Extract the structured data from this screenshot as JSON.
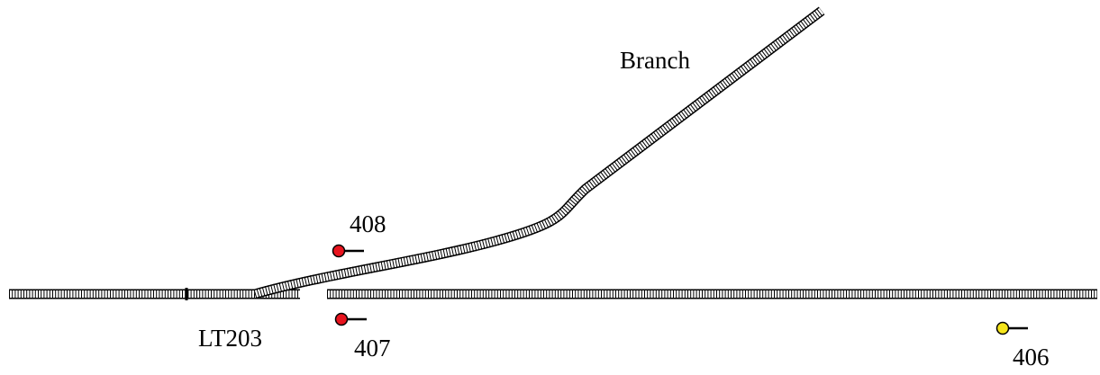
{
  "labels": {
    "branch": "Branch",
    "junction": "LT203"
  },
  "signals": [
    {
      "label": "408"
    },
    {
      "label": "407"
    },
    {
      "label": "406"
    }
  ]
}
